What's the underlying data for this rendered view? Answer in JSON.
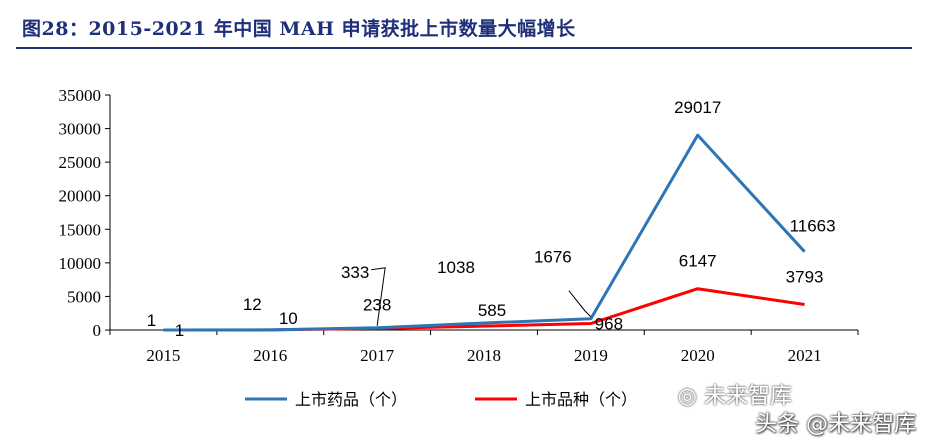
{
  "figure": {
    "title": "图28：2015-2021 年中国 MAH 申请获批上市数量大幅增长"
  },
  "watermark": {
    "top": "未来智库",
    "bottom": "头条 @未来智库"
  },
  "chart_data": {
    "type": "line",
    "title": "图28：2015-2021 年中国 MAH 申请获批上市数量大幅增长",
    "categories": [
      "2015",
      "2016",
      "2017",
      "2018",
      "2019",
      "2020",
      "2021"
    ],
    "ylim": [
      0,
      35000
    ],
    "yticks": [
      0,
      5000,
      10000,
      15000,
      20000,
      25000,
      30000,
      35000
    ],
    "ytick_labels": [
      "0",
      "5000",
      "10000",
      "15000",
      "20000",
      "25000",
      "30000",
      "35000"
    ],
    "legend_position": "bottom",
    "series": [
      {
        "name": "上市药品（个）",
        "color": "#2e75b6",
        "values": [
          1,
          12,
          333,
          1038,
          1676,
          29017,
          11663
        ],
        "labels": [
          "1",
          "12",
          "333",
          "1038",
          "1676",
          "29017",
          "11663"
        ]
      },
      {
        "name": "上市品种（个）",
        "color": "#ff0000",
        "values": [
          1,
          10,
          238,
          585,
          968,
          6147,
          3793
        ],
        "labels": [
          "1",
          "10",
          "238",
          "585",
          "968",
          "6147",
          "3793"
        ]
      }
    ]
  }
}
